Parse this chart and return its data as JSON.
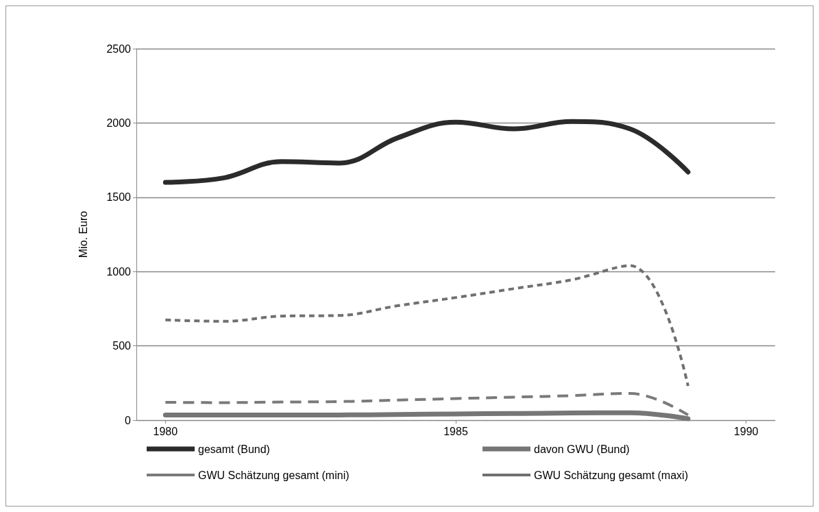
{
  "chart_data": {
    "type": "line",
    "ylabel": "Mio. Euro",
    "x": [
      1980,
      1981,
      1982,
      1983,
      1984,
      1985,
      1986,
      1987,
      1988,
      1989
    ],
    "xlim": [
      1979.5,
      1990.5
    ],
    "xticks": [
      1980,
      1985,
      1990
    ],
    "ylim": [
      0,
      2500
    ],
    "yticks": [
      0,
      500,
      1000,
      1500,
      2000,
      2500
    ],
    "grid": "y",
    "legend": "bottom",
    "marker": "none",
    "series": [
      {
        "name": "gesamt (Bund)",
        "color": "#2b2b2b",
        "line_style": "solid",
        "values": [
          1600,
          1630,
          1740,
          1730,
          1900,
          2005,
          1960,
          2010,
          1960,
          1670
        ]
      },
      {
        "name": "davon GWU (Bund)",
        "color": "#767676",
        "line_style": "solid",
        "values": [
          35,
          35,
          35,
          35,
          38,
          42,
          45,
          48,
          50,
          10
        ]
      },
      {
        "name": "GWU Schätzung gesamt (mini)",
        "color": "#7a7a7a",
        "line_style": "dashed",
        "values": [
          120,
          118,
          122,
          125,
          135,
          145,
          155,
          165,
          180,
          35
        ]
      },
      {
        "name": "GWU Schätzung gesamt (maxi)",
        "color": "#707070",
        "line_style": "dotted",
        "values": [
          675,
          665,
          700,
          705,
          770,
          825,
          885,
          945,
          1040,
          230
        ]
      }
    ]
  }
}
